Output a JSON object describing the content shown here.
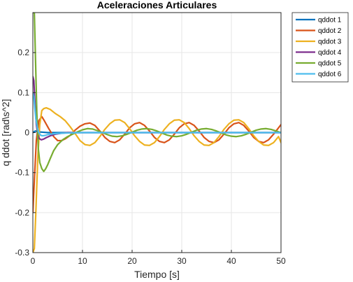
{
  "chart_data": {
    "type": "line",
    "title": "Aceleraciones Articulares",
    "xlabel": "Tiempo [s]",
    "ylabel": "q ddot [rad\\s^2]",
    "xlim": [
      0,
      50
    ],
    "ylim": [
      -0.3,
      0.3
    ],
    "xticks": [
      0,
      10,
      20,
      30,
      40,
      50
    ],
    "yticks": [
      -0.3,
      -0.2,
      -0.1,
      0,
      0.1,
      0.2
    ],
    "grid": true,
    "legend_position": "outside-top-right",
    "series": [
      {
        "name": "qddot 1",
        "color": "#0072BD",
        "x": [
          0,
          0.5,
          1,
          2,
          3,
          5,
          8,
          12,
          20,
          30,
          40,
          50
        ],
        "y": [
          0.0,
          0.004,
          0.002,
          0.001,
          0.0,
          0.0,
          0.0,
          0.0,
          0.0,
          0.0,
          0.0,
          0.0
        ]
      },
      {
        "name": "qddot 2",
        "color": "#D95319",
        "x": [
          0,
          0.3,
          0.7,
          1.2,
          1.8,
          2.3,
          3.2,
          4.2,
          5.0,
          5.8,
          6.6,
          7.5,
          8.5,
          9.5,
          10.5,
          11.5,
          12.5,
          13.5,
          14.5,
          15.5,
          16.5,
          17.5,
          18.5,
          19.5,
          20.5,
          21.5,
          22.5,
          23.5,
          24.5,
          25.5,
          26.5,
          27.5,
          28.5,
          29.5,
          30.5,
          31.5,
          32.5,
          33.5,
          34.5,
          35.5,
          36.5,
          37.5,
          38.5,
          39.5,
          40.5,
          41.5,
          42.5,
          43.5,
          44.5,
          45.5,
          46.5,
          47.5,
          48.5,
          49.5,
          50
        ],
        "y": [
          -0.2,
          -0.12,
          -0.02,
          0.03,
          0.04,
          0.03,
          0.01,
          -0.01,
          -0.02,
          -0.02,
          -0.015,
          -0.007,
          0.006,
          0.016,
          0.022,
          0.024,
          0.018,
          0.004,
          -0.012,
          -0.022,
          -0.025,
          -0.018,
          -0.004,
          0.012,
          0.022,
          0.025,
          0.018,
          0.004,
          -0.012,
          -0.022,
          -0.025,
          -0.018,
          -0.004,
          0.012,
          0.022,
          0.025,
          0.018,
          0.004,
          -0.012,
          -0.022,
          -0.025,
          -0.018,
          -0.004,
          0.012,
          0.022,
          0.025,
          0.018,
          0.004,
          -0.012,
          -0.022,
          -0.025,
          -0.018,
          -0.004,
          0.012,
          0.02
        ]
      },
      {
        "name": "qddot 3",
        "color": "#EDB120",
        "x": [
          0,
          0.3,
          0.6,
          1.0,
          1.4,
          1.8,
          2.2,
          2.7,
          3.5,
          4.5,
          5.5,
          6.5,
          7.5,
          8.5,
          9.5,
          10.5,
          11.5,
          12.5,
          13.5,
          14.5,
          15.5,
          16.5,
          17.5,
          18.5,
          19.5,
          20.5,
          21.5,
          22.5,
          23.5,
          24.5,
          25.5,
          26.5,
          27.5,
          28.5,
          29.5,
          30.5,
          31.5,
          32.5,
          33.5,
          34.5,
          35.5,
          36.5,
          37.5,
          38.5,
          39.5,
          40.5,
          41.5,
          42.5,
          43.5,
          44.5,
          45.5,
          46.5,
          47.5,
          48.5,
          49.5,
          50
        ],
        "y": [
          -0.3,
          -0.29,
          -0.2,
          -0.06,
          0.02,
          0.055,
          0.06,
          0.062,
          0.058,
          0.048,
          0.04,
          0.03,
          0.015,
          -0.002,
          -0.02,
          -0.03,
          -0.032,
          -0.025,
          -0.01,
          0.008,
          0.022,
          0.031,
          0.032,
          0.025,
          0.01,
          -0.008,
          -0.022,
          -0.031,
          -0.032,
          -0.025,
          -0.01,
          0.008,
          0.022,
          0.031,
          0.032,
          0.025,
          0.01,
          -0.008,
          -0.022,
          -0.031,
          -0.032,
          -0.025,
          -0.01,
          0.008,
          0.022,
          0.031,
          0.032,
          0.025,
          0.01,
          -0.008,
          -0.022,
          -0.031,
          -0.032,
          -0.025,
          -0.01,
          -0.025
        ]
      },
      {
        "name": "qddot 4",
        "color": "#7E2F8E",
        "x": [
          0,
          0.2,
          0.4,
          0.7,
          1.0,
          1.3,
          1.7,
          2.2,
          2.8,
          3.5,
          4.5,
          5.5,
          7,
          10,
          15,
          20,
          30,
          40,
          50
        ],
        "y": [
          0.14,
          0.13,
          0.08,
          0.02,
          -0.005,
          -0.015,
          -0.018,
          -0.016,
          -0.012,
          -0.008,
          -0.004,
          -0.002,
          0.0,
          0.0,
          0.0,
          0.0,
          0.0,
          0.0,
          0.0
        ]
      },
      {
        "name": "qddot 5",
        "color": "#77AC30",
        "x": [
          0,
          0.3,
          0.5,
          0.8,
          1.1,
          1.4,
          1.8,
          2.2,
          2.6,
          3.0,
          3.5,
          4.2,
          5.0,
          6.0,
          7.0,
          8.0,
          9.0,
          10.0,
          11.0,
          12.0,
          13.0,
          14.0,
          15.0,
          16.0,
          17.0,
          18.0,
          19.0,
          20.0,
          21.0,
          22.0,
          23.0,
          24.0,
          25.0,
          26.0,
          27.0,
          28.0,
          29.0,
          30.0,
          31.0,
          32.0,
          33.0,
          34.0,
          35.0,
          36.0,
          37.0,
          38.0,
          39.0,
          40.0,
          41.0,
          42.0,
          43.0,
          44.0,
          45.0,
          46.0,
          47.0,
          48.0,
          49.0,
          50.0
        ],
        "y": [
          0.3,
          0.3,
          0.2,
          0.05,
          -0.04,
          -0.075,
          -0.09,
          -0.097,
          -0.09,
          -0.08,
          -0.065,
          -0.045,
          -0.03,
          -0.018,
          -0.01,
          -0.004,
          0.002,
          0.007,
          0.01,
          0.009,
          0.005,
          0.0,
          -0.005,
          -0.009,
          -0.01,
          -0.008,
          -0.004,
          0.001,
          0.006,
          0.009,
          0.01,
          0.008,
          0.004,
          -0.001,
          -0.006,
          -0.009,
          -0.01,
          -0.008,
          -0.004,
          0.001,
          0.006,
          0.009,
          0.01,
          0.008,
          0.004,
          -0.001,
          -0.006,
          -0.009,
          -0.01,
          -0.008,
          -0.004,
          0.001,
          0.006,
          0.009,
          0.01,
          0.008,
          0.004,
          0.0
        ]
      },
      {
        "name": "qddot 6",
        "color": "#4DBEEE",
        "x": [
          0,
          0.2,
          0.4,
          0.6,
          0.9,
          1.2,
          1.6,
          2.0,
          2.5,
          3.0,
          4.0,
          5.0,
          7.0,
          10,
          20,
          30,
          40,
          50
        ],
        "y": [
          0.1,
          0.09,
          0.06,
          0.035,
          0.012,
          0.0,
          -0.007,
          -0.008,
          -0.007,
          -0.005,
          -0.003,
          -0.002,
          -0.001,
          0.0,
          0.0,
          0.0,
          0.0,
          0.0
        ]
      }
    ]
  }
}
